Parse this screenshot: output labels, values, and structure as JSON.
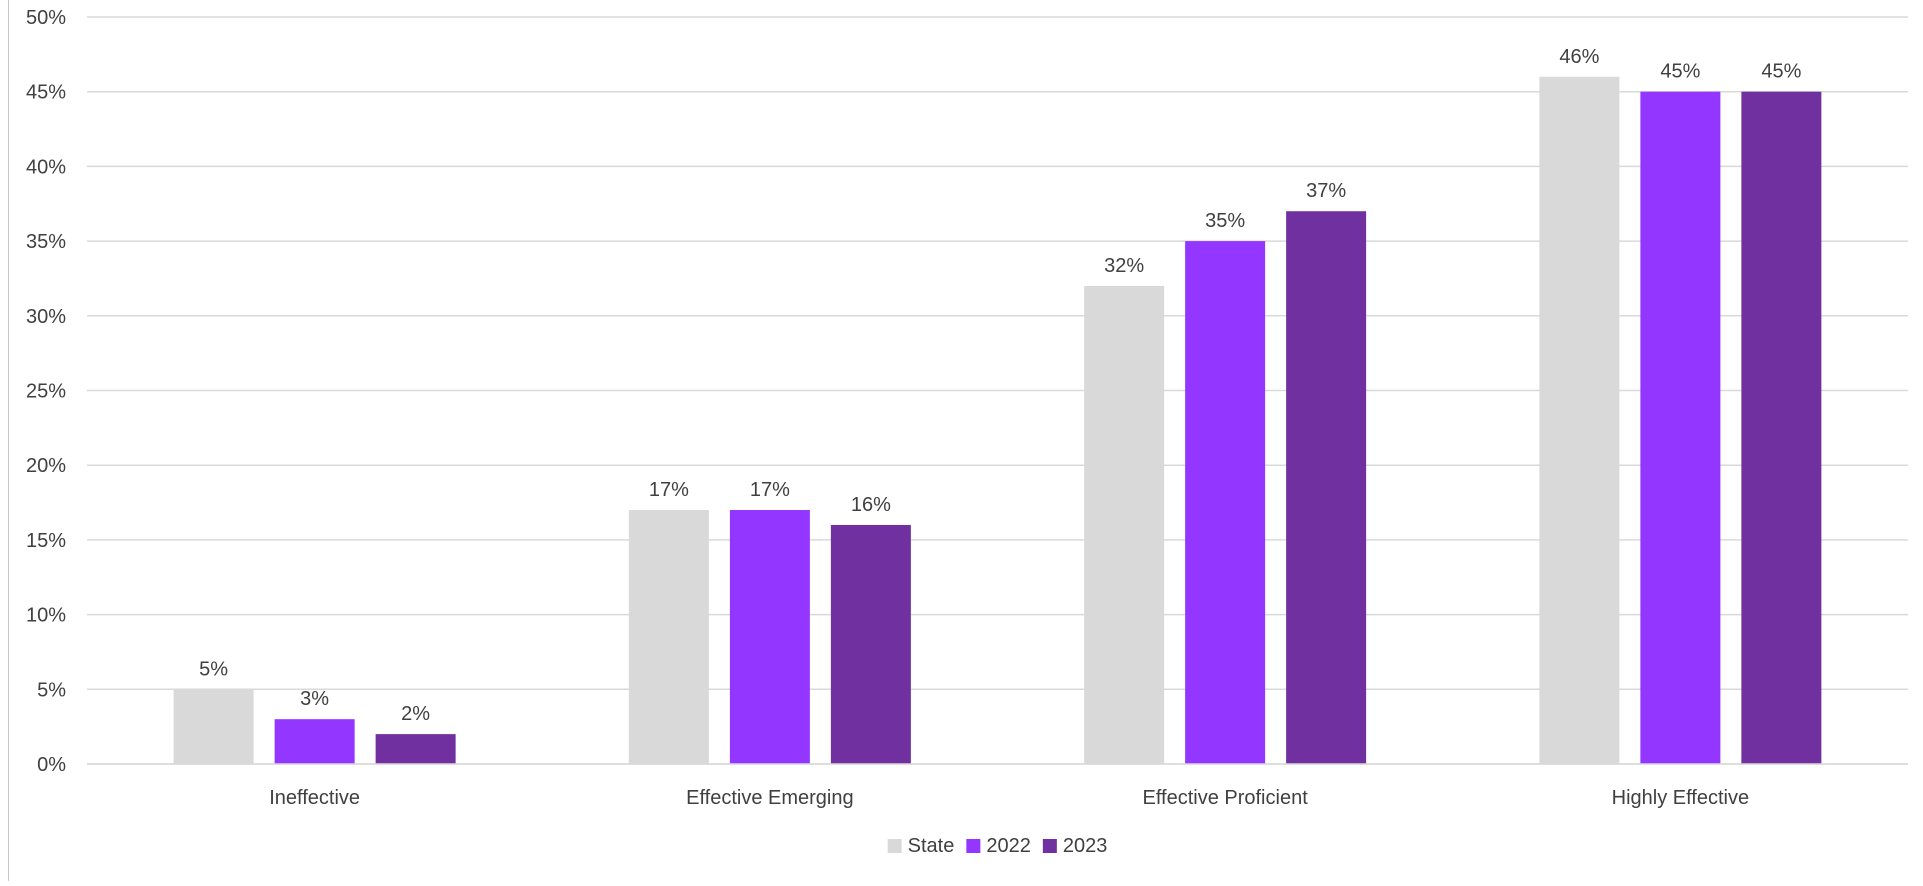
{
  "chart_data": {
    "type": "bar",
    "title": "",
    "xlabel": "",
    "ylabel": "",
    "categories": [
      "Ineffective",
      "Effective Emerging",
      "Effective Proficient",
      "Highly Effective"
    ],
    "series": [
      {
        "name": "State",
        "color": "#d9d9d9",
        "values": [
          5,
          17,
          32,
          46
        ],
        "labels": [
          "5%",
          "17%",
          "32%",
          "46%"
        ]
      },
      {
        "name": "2022",
        "color": "#9336ff",
        "values": [
          3,
          17,
          35,
          45
        ],
        "labels": [
          "3%",
          "17%",
          "35%",
          "45%"
        ]
      },
      {
        "name": "2023",
        "color": "#7030a0",
        "values": [
          2,
          16,
          37,
          45
        ],
        "labels": [
          "2%",
          "16%",
          "37%",
          "45%"
        ]
      }
    ],
    "ylim": [
      0,
      50
    ],
    "yticks": [
      0,
      5,
      10,
      15,
      20,
      25,
      30,
      35,
      40,
      45,
      50
    ],
    "ytick_labels": [
      "0%",
      "5%",
      "10%",
      "15%",
      "20%",
      "25%",
      "30%",
      "35%",
      "40%",
      "45%",
      "50%"
    ],
    "grid": true,
    "legend_position": "bottom",
    "colors": {
      "grid": "#d9d9d9",
      "text": "#404040",
      "axis": "#d9d9d9"
    }
  }
}
